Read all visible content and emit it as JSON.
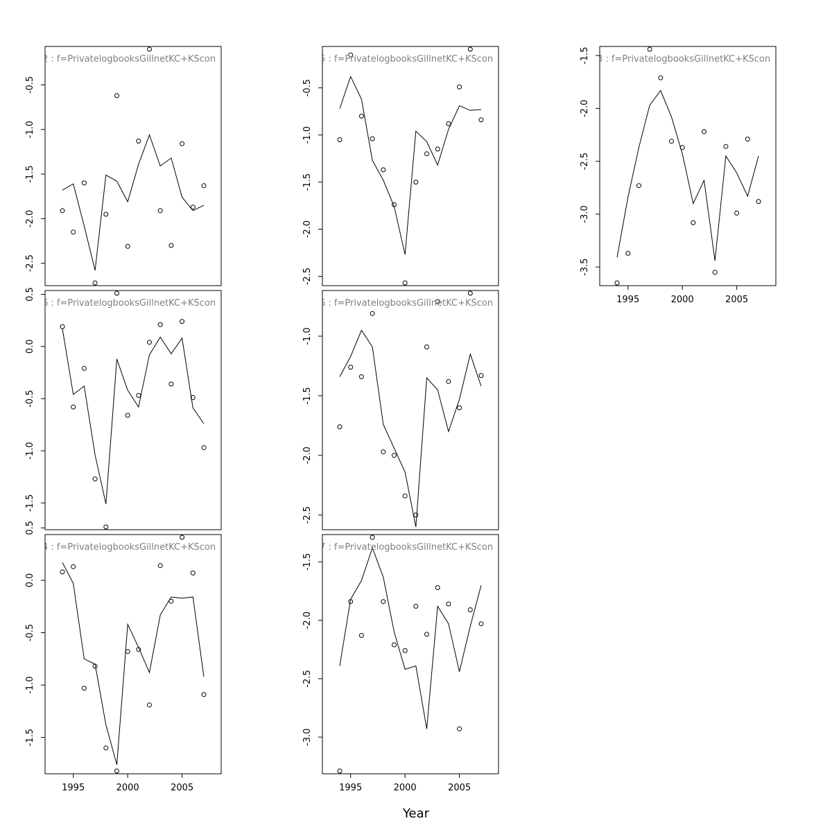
{
  "x_axis_label": "Year",
  "chart_data": [
    {
      "type": "scatter+line",
      "title": "2 : f=PrivatelogbooksGillnetKC+KScon",
      "x": [
        1994,
        1995,
        1996,
        1997,
        1998,
        1999,
        2000,
        2001,
        2002,
        2003,
        2004,
        2005,
        2006,
        2007
      ],
      "points": [
        -1.91,
        -2.15,
        -1.6,
        -2.72,
        -1.95,
        -0.62,
        -2.31,
        -1.13,
        -0.1,
        -1.91,
        -2.3,
        -1.16,
        -1.87,
        -1.63
      ],
      "fitted": [
        -1.68,
        -1.61,
        -2.08,
        -2.58,
        -1.51,
        -1.58,
        -1.81,
        -1.39,
        -1.06,
        -1.41,
        -1.32,
        -1.76,
        -1.91,
        -1.85
      ],
      "yticks": [
        -2.5,
        -2.0,
        -1.5,
        -1.0,
        -0.5
      ],
      "show_xticks": false
    },
    {
      "type": "scatter+line",
      "title": "5 : f=PrivatelogbooksGillnetKC+KScon",
      "x": [
        1994,
        1995,
        1996,
        1997,
        1998,
        1999,
        2000,
        2001,
        2002,
        2003,
        2004,
        2005,
        2006,
        2007
      ],
      "points": [
        -1.05,
        -0.15,
        -0.8,
        -1.04,
        -1.37,
        -1.74,
        -2.57,
        -1.5,
        -1.2,
        -1.15,
        -0.88,
        -0.49,
        -0.09,
        -0.84
      ],
      "fitted": [
        -0.72,
        -0.38,
        -0.62,
        -1.27,
        -1.48,
        -1.76,
        -2.27,
        -0.96,
        -1.07,
        -1.32,
        -0.94,
        -0.69,
        -0.74,
        -0.73
      ],
      "yticks": [
        -2.5,
        -2.0,
        -1.5,
        -1.0,
        -0.5
      ],
      "show_xticks": false
    },
    {
      "type": "scatter+line",
      "title": "3 : f=PrivatelogbooksGillnetKC+KScon",
      "x": [
        1994,
        1995,
        1996,
        1997,
        1998,
        1999,
        2000,
        2001,
        2002,
        2003,
        2004,
        2005,
        2006,
        2007
      ],
      "points": [
        -3.65,
        -3.37,
        -2.73,
        -1.44,
        -1.71,
        -2.31,
        -2.37,
        -3.08,
        -2.22,
        -3.55,
        -2.36,
        -2.99,
        -2.29,
        -2.88
      ],
      "fitted": [
        -3.41,
        -2.84,
        -2.37,
        -1.97,
        -1.83,
        -2.08,
        -2.43,
        -2.9,
        -2.68,
        -3.44,
        -2.45,
        -2.61,
        -2.83,
        -2.45
      ],
      "yticks": [
        -3.5,
        -3.0,
        -2.5,
        -2.0,
        -1.5
      ],
      "show_xticks": true
    },
    {
      "type": "scatter+line",
      "title": "6 : f=PrivatelogbooksGillnetKC+KScon",
      "x": [
        1994,
        1995,
        1996,
        1997,
        1998,
        1999,
        2000,
        2001,
        2002,
        2003,
        2004,
        2005,
        2006,
        2007
      ],
      "points": [
        0.19,
        -0.58,
        -0.21,
        -1.27,
        -1.73,
        0.51,
        -0.66,
        -0.47,
        0.04,
        0.21,
        -0.36,
        0.24,
        -0.49,
        -0.97
      ],
      "fitted": [
        0.17,
        -0.46,
        -0.38,
        -1.04,
        -1.51,
        -0.12,
        -0.42,
        -0.58,
        -0.08,
        0.09,
        -0.07,
        0.08,
        -0.59,
        -0.74
      ],
      "yticks": [
        -1.5,
        -1.0,
        -0.5,
        0.0,
        0.5
      ],
      "show_xticks": false
    },
    {
      "type": "scatter+line",
      "title": "6 : f=PrivatelogbooksGillnetKC+KScon",
      "x": [
        1994,
        1995,
        1996,
        1997,
        1998,
        1999,
        2000,
        2001,
        2002,
        2003,
        2004,
        2005,
        2006,
        2007
      ],
      "points": [
        -1.76,
        -1.26,
        -1.34,
        -0.81,
        -1.97,
        -2.0,
        -2.34,
        -2.5,
        -1.09,
        -0.71,
        -1.38,
        -1.6,
        -0.64,
        -1.33
      ],
      "fitted": [
        -1.34,
        -1.17,
        -0.95,
        -1.09,
        -1.74,
        -1.94,
        -2.14,
        -2.6,
        -1.35,
        -1.45,
        -1.8,
        -1.53,
        -1.15,
        -1.42
      ],
      "yticks": [
        -2.5,
        -2.0,
        -1.5,
        -1.0
      ],
      "show_xticks": false
    },
    {
      "type": "scatter+line",
      "title": "4 : f=PrivatelogbooksGillnetKC+KScon",
      "x": [
        1994,
        1995,
        1996,
        1997,
        1998,
        1999,
        2000,
        2001,
        2002,
        2003,
        2004,
        2005,
        2006,
        2007
      ],
      "points": [
        0.08,
        0.13,
        -1.03,
        -0.82,
        -1.6,
        -1.82,
        -0.68,
        -0.66,
        -1.19,
        0.14,
        -0.2,
        0.41,
        0.07,
        -1.09
      ],
      "fitted": [
        0.17,
        -0.03,
        -0.75,
        -0.8,
        -1.38,
        -1.76,
        -0.42,
        -0.64,
        -0.88,
        -0.33,
        -0.16,
        -0.17,
        -0.16,
        -0.92
      ],
      "yticks": [
        -1.5,
        -1.0,
        -0.5,
        0.0,
        0.5
      ],
      "show_xticks": true
    },
    {
      "type": "scatter+line",
      "title": "7 : f=PrivatelogbooksGillnetKC+KScon",
      "x": [
        1994,
        1995,
        1996,
        1997,
        1998,
        1999,
        2000,
        2001,
        2002,
        2003,
        2004,
        2005,
        2006,
        2007
      ],
      "points": [
        -3.29,
        -1.84,
        -2.13,
        -1.29,
        -1.84,
        -2.21,
        -2.26,
        -1.88,
        -2.12,
        -1.72,
        -1.86,
        -2.93,
        -1.91,
        -2.03
      ],
      "fitted": [
        -2.39,
        -1.82,
        -1.66,
        -1.38,
        -1.63,
        -2.1,
        -2.42,
        -2.39,
        -2.93,
        -1.88,
        -2.03,
        -2.44,
        -2.05,
        -1.7
      ],
      "yticks": [
        -3.0,
        -2.5,
        -2.0,
        -1.5
      ],
      "show_xticks": true
    }
  ]
}
